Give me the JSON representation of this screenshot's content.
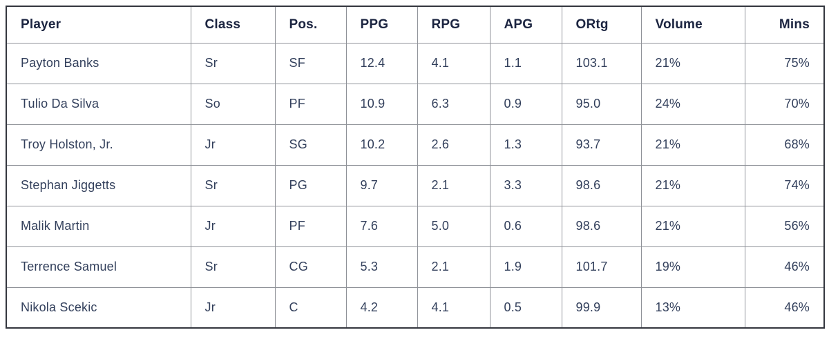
{
  "colors": {
    "header_text": "#1b2440",
    "body_text": "#33405c",
    "border_inner": "#8f9298",
    "border_outer": "#33363e",
    "background": "#ffffff"
  },
  "chart_data": {
    "type": "table",
    "title": "",
    "columns": [
      "Player",
      "Class",
      "Pos.",
      "PPG",
      "RPG",
      "APG",
      "ORtg",
      "Volume",
      "Mins"
    ],
    "align": [
      "left",
      "left",
      "left",
      "left",
      "left",
      "left",
      "left",
      "left",
      "right"
    ],
    "rows": [
      [
        "Payton Banks",
        "Sr",
        "SF",
        "12.4",
        "4.1",
        "1.1",
        "103.1",
        "21%",
        "75%"
      ],
      [
        "Tulio Da Silva",
        "So",
        "PF",
        "10.9",
        "6.3",
        "0.9",
        "95.0",
        "24%",
        "70%"
      ],
      [
        "Troy Holston, Jr.",
        "Jr",
        "SG",
        "10.2",
        "2.6",
        "1.3",
        "93.7",
        "21%",
        "68%"
      ],
      [
        "Stephan Jiggetts",
        "Sr",
        "PG",
        "9.7",
        "2.1",
        "3.3",
        "98.6",
        "21%",
        "74%"
      ],
      [
        "Malik Martin",
        "Jr",
        "PF",
        "7.6",
        "5.0",
        "0.6",
        "98.6",
        "21%",
        "56%"
      ],
      [
        "Terrence Samuel",
        "Sr",
        "CG",
        "5.3",
        "2.1",
        "1.9",
        "101.7",
        "19%",
        "46%"
      ],
      [
        "Nikola Scekic",
        "Jr",
        "C",
        "4.2",
        "4.1",
        "0.5",
        "99.9",
        "13%",
        "46%"
      ]
    ]
  }
}
